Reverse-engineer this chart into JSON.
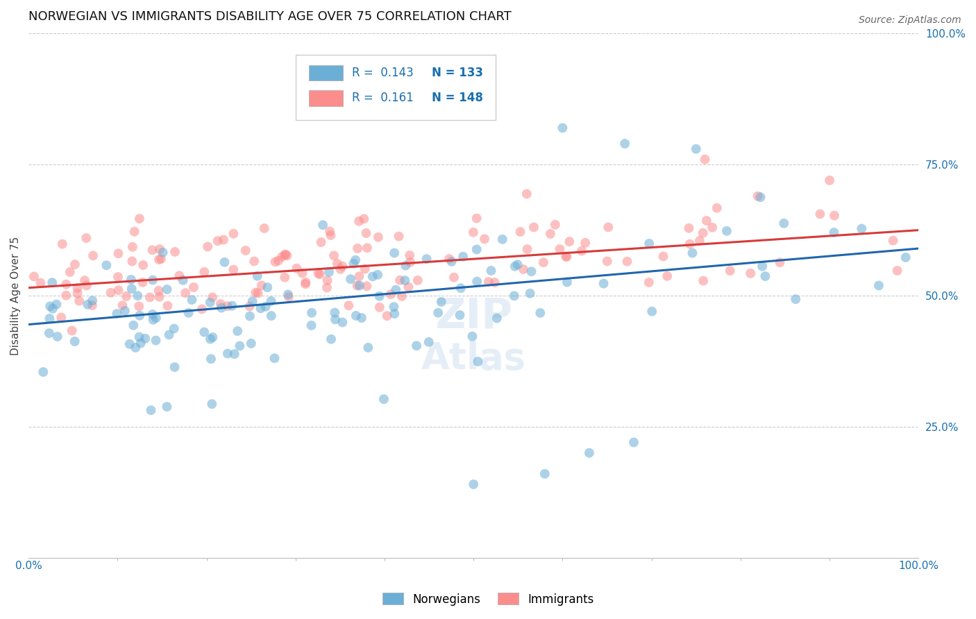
{
  "title": "NORWEGIAN VS IMMIGRANTS DISABILITY AGE OVER 75 CORRELATION CHART",
  "source": "Source: ZipAtlas.com",
  "ylabel": "Disability Age Over 75",
  "xmin": 0.0,
  "xmax": 1.0,
  "ymin": 0.0,
  "ymax": 1.0,
  "ytick_labels": [
    "25.0%",
    "50.0%",
    "75.0%",
    "100.0%"
  ],
  "ytick_positions": [
    0.25,
    0.5,
    0.75,
    1.0
  ],
  "norwegians_R": 0.143,
  "norwegians_N": 133,
  "immigrants_R": 0.161,
  "immigrants_N": 148,
  "norwegians_color": "#6baed6",
  "immigrants_color": "#fc8d8d",
  "norwegians_line_color": "#2166ac",
  "immigrants_line_color": "#d63b3b",
  "legend_R_color": "#1a6faf",
  "title_fontsize": 13,
  "label_fontsize": 11,
  "tick_fontsize": 11,
  "source_fontsize": 10,
  "marker_size": 100,
  "marker_alpha": 0.55,
  "line_width": 2.2,
  "nor_line_x0": 0.0,
  "nor_line_y0": 0.445,
  "nor_line_x1": 1.0,
  "nor_line_y1": 0.59,
  "imm_line_x0": 0.0,
  "imm_line_y0": 0.515,
  "imm_line_x1": 1.0,
  "imm_line_y1": 0.625
}
